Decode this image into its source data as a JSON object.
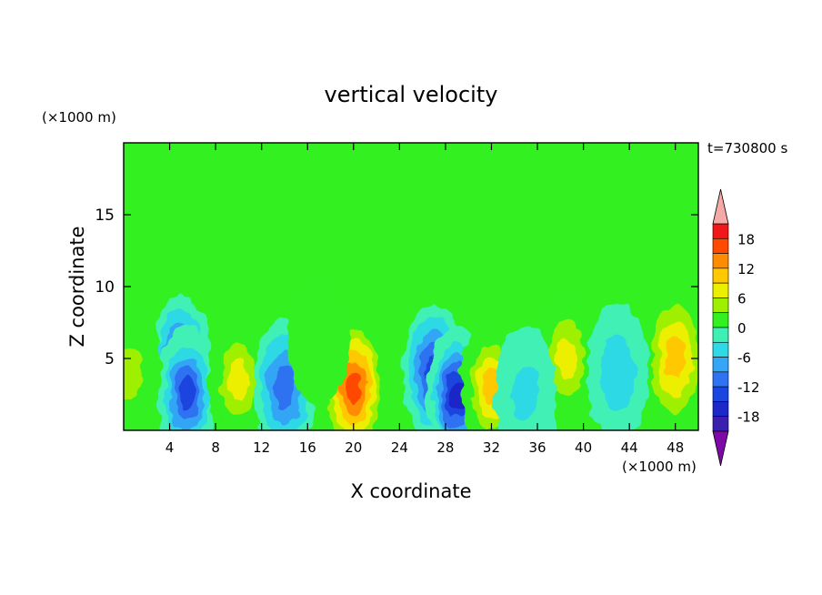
{
  "chart_data": {
    "type": "heatmap",
    "title": "vertical velocity",
    "xlabel": "X coordinate",
    "ylabel": "Z coordinate",
    "x_unit_label": "(×1000 m)",
    "y_unit_label": "(×1000 m)",
    "time_label": "t=730800 s",
    "xlim": [
      0,
      50
    ],
    "ylim": [
      0,
      20
    ],
    "x_ticks": [
      4,
      8,
      12,
      16,
      20,
      24,
      28,
      32,
      36,
      40,
      44,
      48
    ],
    "y_ticks": [
      5,
      10,
      15
    ],
    "grid": false,
    "colorbar": {
      "placement": "right",
      "levels": [
        -21,
        -18,
        -15,
        -12,
        -9,
        -6,
        -3,
        0,
        3,
        6,
        9,
        12,
        15,
        18,
        21
      ],
      "tick_labels": [
        "18",
        "12",
        "6",
        "0",
        "-6",
        "-12",
        "-18"
      ],
      "tick_values": [
        18,
        12,
        6,
        0,
        -6,
        -12,
        -18
      ],
      "colors": [
        "#7d0aa6",
        "#3a1fb0",
        "#1d28c8",
        "#1b45e0",
        "#2f72f2",
        "#33a6f5",
        "#2fd9e6",
        "#3ff0b4",
        "#33f020",
        "#9ef000",
        "#ecf000",
        "#ffc800",
        "#ff8c00",
        "#ff4a00",
        "#f01818",
        "#f4aaa6"
      ]
    },
    "cells": [
      {
        "x": 5,
        "z": 4.5,
        "w": -12
      },
      {
        "x": 5.5,
        "z": 2.5,
        "w": -14
      },
      {
        "x": 10,
        "z": 3.5,
        "w": 9
      },
      {
        "x": 14,
        "z": 3,
        "w": -10
      },
      {
        "x": 20,
        "z": 3,
        "w": 16
      },
      {
        "x": 27,
        "z": 4,
        "w": -13
      },
      {
        "x": 29,
        "z": 2.5,
        "w": -17
      },
      {
        "x": 32,
        "z": 3,
        "w": 12
      },
      {
        "x": 38.5,
        "z": 5,
        "w": 9
      },
      {
        "x": 48,
        "z": 5,
        "w": 10
      },
      {
        "x": 0.5,
        "z": 4,
        "w": 6
      },
      {
        "x": 17,
        "z": 6.5,
        "w": 3
      },
      {
        "x": 43,
        "z": 4,
        "w": -4
      },
      {
        "x": 35,
        "z": 2.5,
        "w": -5
      }
    ]
  }
}
